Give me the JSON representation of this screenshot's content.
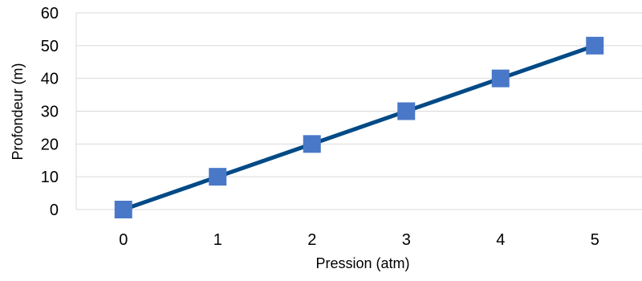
{
  "chart_data": {
    "type": "line",
    "title": "",
    "xlabel": "Pression (atm)",
    "ylabel": "Profondeur (m)",
    "x": [
      0,
      1,
      2,
      3,
      4,
      5
    ],
    "xticks": [
      "0",
      "1",
      "2",
      "3",
      "4",
      "5"
    ],
    "yticks": [
      "0",
      "10",
      "20",
      "30",
      "40",
      "50",
      "60"
    ],
    "xlim": [
      -0.5,
      5.5
    ],
    "ylim": [
      0,
      60
    ],
    "grid": "horizontal",
    "legend": "none",
    "series": [
      {
        "values": [
          0,
          10,
          20,
          30,
          40,
          50
        ],
        "line_color": "#004a86",
        "marker": "square",
        "marker_color": "#4a78c8"
      }
    ]
  }
}
